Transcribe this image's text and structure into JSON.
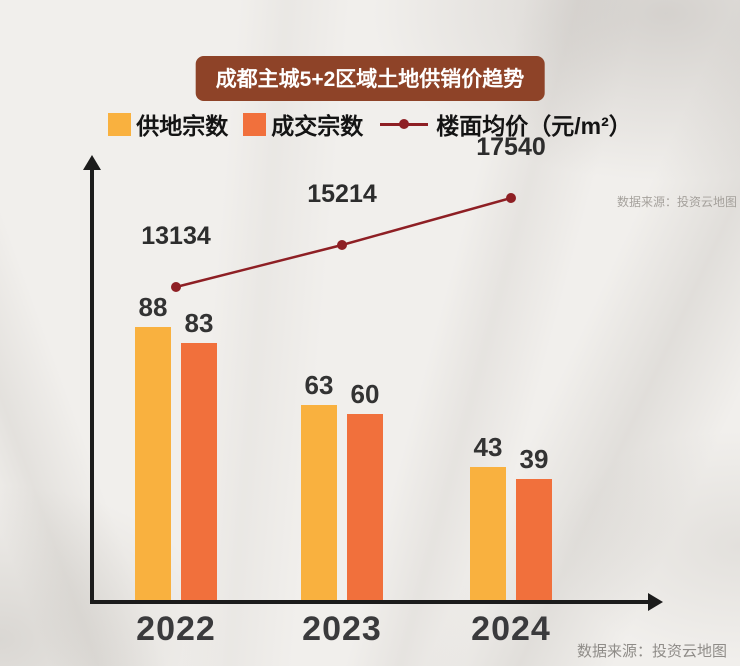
{
  "header": {
    "title": "成都主城5+2区域土地供销价趋势",
    "badge_color": "#8E4328"
  },
  "legend": {
    "supply": {
      "label": "供地宗数",
      "color": "#F9B13F"
    },
    "sold": {
      "label": "成交宗数",
      "color": "#F1703C"
    },
    "price": {
      "label": "楼面均价（元/m²）",
      "color": "#8E1F24"
    }
  },
  "footer": {
    "watermark": "数据来源：投资云地图",
    "source": "数据来源：投资云地图"
  },
  "chart_data": {
    "type": "bar",
    "title": "成都主城5+2区域土地供销价趋势",
    "categories": [
      "2022",
      "2023",
      "2024"
    ],
    "series": [
      {
        "name": "供地宗数",
        "type": "bar",
        "color": "#F9B13F",
        "values": [
          88,
          63,
          43
        ]
      },
      {
        "name": "成交宗数",
        "type": "bar",
        "color": "#F1703C",
        "values": [
          83,
          60,
          39
        ]
      },
      {
        "name": "楼面均价（元/m²）",
        "type": "line",
        "color": "#8E1F24",
        "values": [
          13134,
          15214,
          17540
        ]
      }
    ],
    "legend_entries": [
      "供地宗数",
      "成交宗数",
      "楼面均价（元/m²）"
    ],
    "legend_position": "top",
    "grid": false,
    "xlabel": "",
    "ylabel": "",
    "bar_axis_range": [
      0,
      100
    ],
    "line_axis_range": [
      12000,
      18000
    ],
    "data_labels": true,
    "source": "数据来源：投资云地图"
  }
}
